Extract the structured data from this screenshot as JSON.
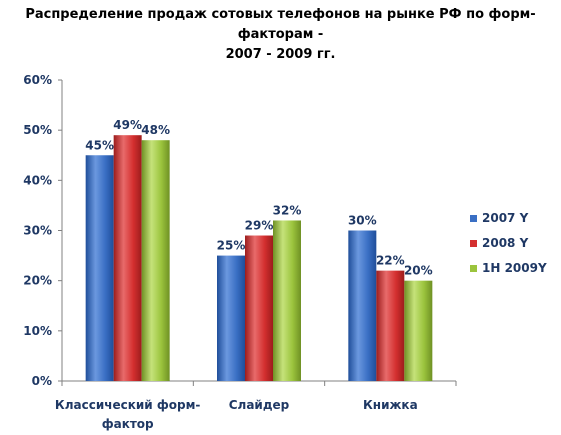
{
  "chart_data": {
    "type": "bar",
    "title_lines": [
      "Распределение продаж сотовых телефонов на рынке РФ по форм-факторам -",
      "2007 - 2009 гг."
    ],
    "categories": [
      [
        "Классический форм-",
        "фактор"
      ],
      [
        "Слайдер"
      ],
      [
        "Книжка"
      ]
    ],
    "series": [
      {
        "name": "2007 Y",
        "values": [
          45,
          25,
          30
        ],
        "labels": [
          "45%",
          "25%",
          "30%"
        ],
        "color": "#3a6fc4",
        "color_dark": "#1f4e9a",
        "color_light": "#6b98df"
      },
      {
        "name": "2008 Y",
        "values": [
          49,
          29,
          22
        ],
        "labels": [
          "49%",
          "29%",
          "22%"
        ],
        "color": "#d42f2f",
        "color_dark": "#9c1c1c",
        "color_light": "#e86b6b"
      },
      {
        "name": "1H 2009Y",
        "values": [
          48,
          32,
          20
        ],
        "labels": [
          "48%",
          "32%",
          "20%"
        ],
        "color": "#9bc43d",
        "color_dark": "#6f9124",
        "color_light": "#c5e27a"
      }
    ],
    "ylim": [
      0,
      60
    ],
    "yticks": [
      0,
      10,
      20,
      30,
      40,
      50,
      60
    ],
    "ytick_labels": [
      "0%",
      "10%",
      "20%",
      "30%",
      "40%",
      "50%",
      "60%"
    ],
    "grid": false,
    "legend_position": "right"
  }
}
